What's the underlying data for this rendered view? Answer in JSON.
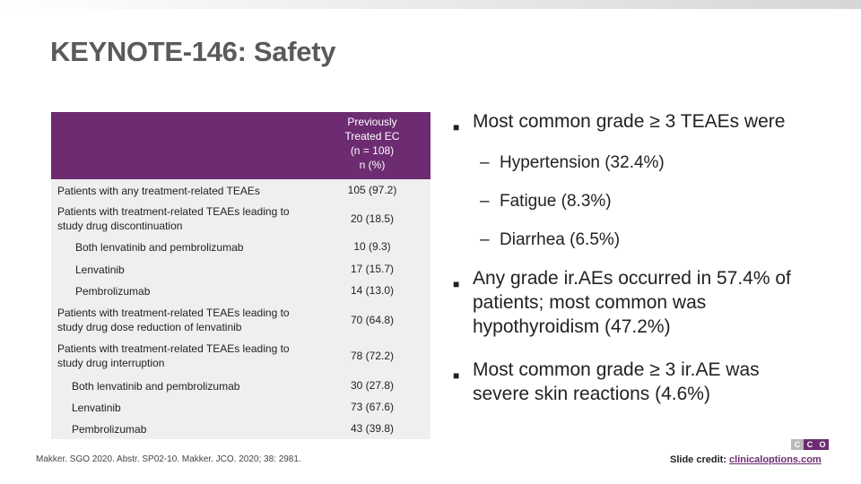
{
  "title": "KEYNOTE-146: Safety",
  "table": {
    "header": [
      "Previously",
      "Treated EC",
      "(n = 108)",
      "n (%)"
    ],
    "rows": [
      {
        "label": "Patients with any treatment-related TEAEs",
        "value": "105 (97.2)"
      },
      {
        "label": "Patients with treatment-related TEAEs leading to study drug discontinuation",
        "value": "20 (18.5)"
      },
      {
        "label": "Both lenvatinib and pembrolizumab",
        "value": "10 (9.3)"
      },
      {
        "label": "Lenvatinib",
        "value": "17 (15.7)"
      },
      {
        "label": "Pembrolizumab",
        "value": "14 (13.0)"
      },
      {
        "label": "Patients with treatment-related TEAEs leading to study drug dose reduction of lenvatinib",
        "value": "70 (64.8)"
      },
      {
        "label": "Patients with treatment-related TEAEs leading to study drug interruption",
        "value": "78 (72.2)"
      },
      {
        "label": "Both lenvatinib and pembrolizumab",
        "value": "30 (27.8)"
      },
      {
        "label": "Lenvatinib",
        "value": "73 (67.6)"
      },
      {
        "label": "Pembrolizumab",
        "value": "43 (39.8)"
      }
    ]
  },
  "bullets": {
    "b1": "Most common grade ≥ 3 TEAEs were",
    "b1_sub": [
      "Hypertension (32.4%)",
      "Fatigue (8.3%)",
      "Diarrhea (6.5%)"
    ],
    "b2": "Any grade ir.AEs occurred in 57.4% of patients; most common was hypothyroidism (47.2%)",
    "b3": "Most common grade ≥ 3 ir.AE was severe skin reactions (4.6%)"
  },
  "footnote": "Makker. SGO 2020. Abstr. SP02-10. Makker. JCO. 2020; 38: 2981.",
  "credit": {
    "label": "Slide credit:",
    "link": "clinicaloptions.com"
  },
  "logo": {
    "letters": [
      "C",
      "C",
      "O"
    ],
    "colors": [
      "#b9b9b9",
      "#6d2c72",
      "#6d2c72"
    ]
  }
}
